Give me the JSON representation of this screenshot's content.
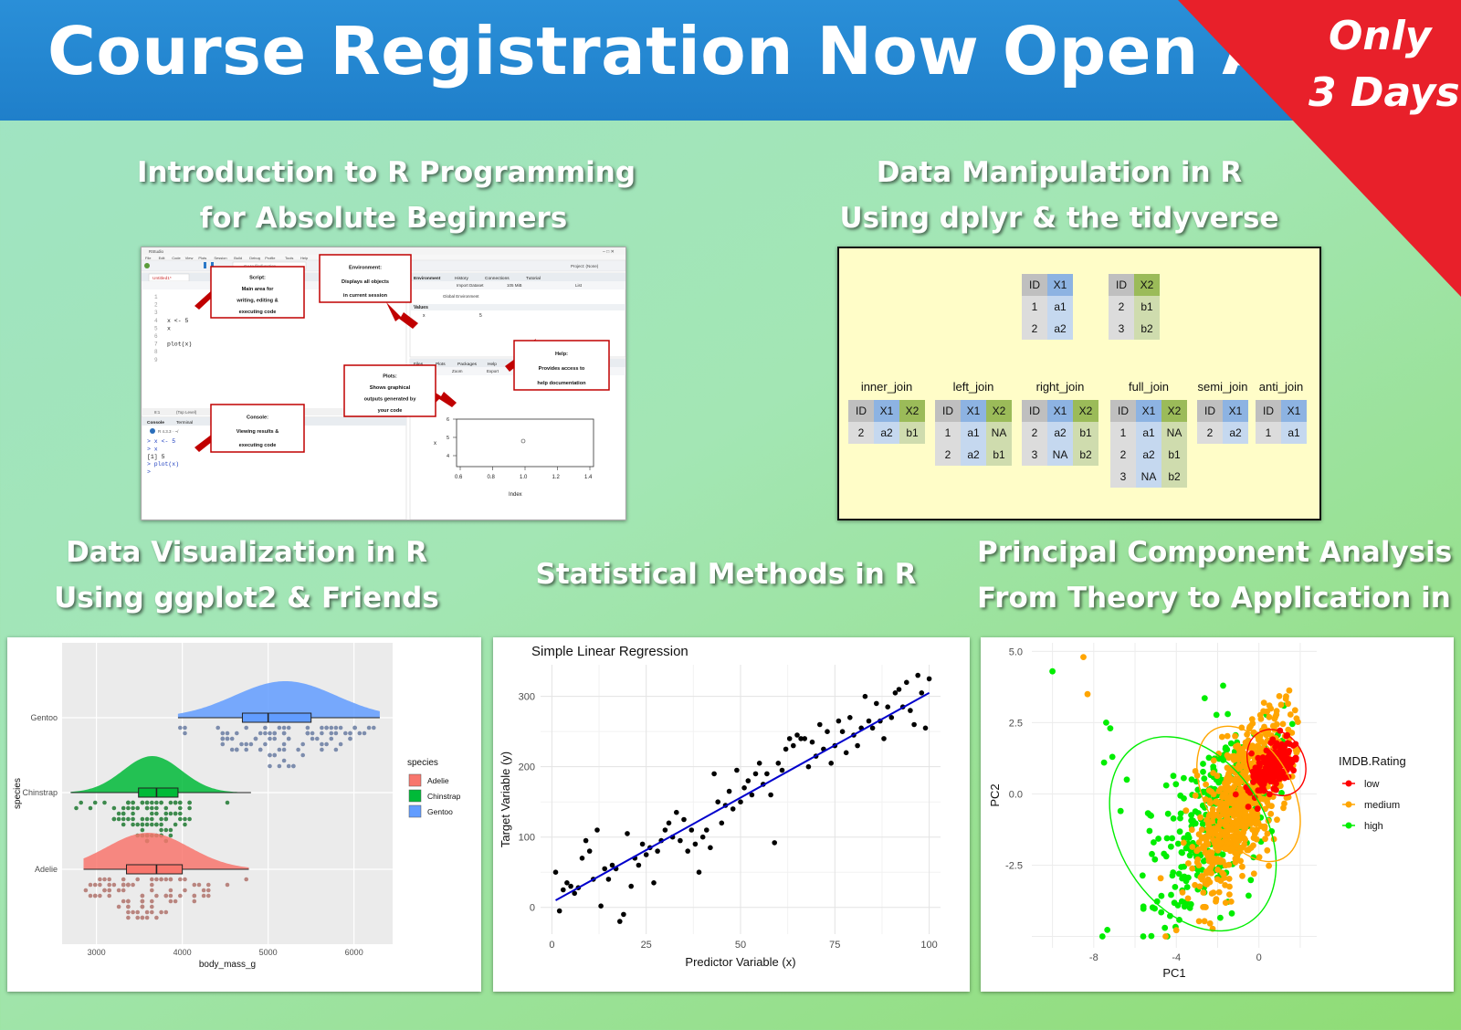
{
  "banner": {
    "title": "Course Registration Now Open Again",
    "corner_line1": "Only",
    "corner_line2": "3 Days",
    "colors": {
      "banner": "#1f7fca",
      "corner": "#e8202a"
    }
  },
  "courses": [
    {
      "title_line1": "Introduction to R Programming",
      "title_line2": "for Absolute Beginners"
    },
    {
      "title_line1": "Data Manipulation in R",
      "title_line2": "Using dplyr & the tidyverse"
    },
    {
      "title_line1": "Data Visualization in R",
      "title_line2": "Using ggplot2 & Friends"
    },
    {
      "title_line1": "Statistical Methods in R"
    },
    {
      "title_line1": "Principal Component Analysis",
      "title_line2": "From Theory to Application in R"
    }
  ],
  "rstudio": {
    "callouts": {
      "script": [
        "Script:",
        "Main area for",
        "writing, editing &",
        "executing code"
      ],
      "environment": [
        "Environment:",
        "Displays all objects",
        "in current session"
      ],
      "help": [
        "Help:",
        "Provides access to",
        "help documentation"
      ],
      "plots": [
        "Plots:",
        "Shows graphical",
        "outputs generated by",
        "your code"
      ],
      "console": [
        "Console:",
        "Viewing results &",
        "executing code"
      ]
    },
    "editor_tab": "Untitled1*",
    "line_numbers": [
      "1",
      "2",
      "3",
      "4",
      "5",
      "6",
      "7",
      "8",
      "9"
    ],
    "code_lines": [
      "",
      "",
      "",
      "x <- 5",
      "x",
      "",
      "plot(x)",
      "",
      ""
    ],
    "env_tabs": [
      "Environment",
      "History",
      "Connections",
      "Tutorial"
    ],
    "env_toolbar": [
      "Import Dataset",
      "105 MiB",
      "List"
    ],
    "global_env": "Global Environment",
    "values_header": "Values",
    "env_var": {
      "name": "x",
      "value": "5"
    },
    "files_tabs": [
      "Files",
      "Plots",
      "Packages",
      "Help"
    ],
    "plot_toolbar": [
      "Zoom",
      "Export"
    ],
    "console_tabs": [
      "Console",
      "Terminal"
    ],
    "status": [
      "8:1",
      "(Top Level)"
    ],
    "r_version": "R 4.3.3 · ~/",
    "console_lines": [
      "> x <- 5",
      "> x",
      "[1] 5",
      "> plot(x)",
      "> "
    ],
    "project": "Project: (None)",
    "goto": "Go to file/function",
    "window_title": "RStudio",
    "menu": [
      "File",
      "Edit",
      "Code",
      "View",
      "Plots",
      "Session",
      "Build",
      "Debug",
      "Profile",
      "Tools",
      "Help"
    ],
    "mini_plot": {
      "x_ticks": [
        "0.6",
        "0.8",
        "1.0",
        "1.2",
        "1.4"
      ],
      "y_ticks": [
        "4",
        "5",
        "6"
      ],
      "ylabel": "x",
      "xlabel": "Index"
    }
  },
  "joins": {
    "x_table": {
      "header": [
        "ID",
        "X1"
      ],
      "rows": [
        [
          "1",
          "a1"
        ],
        [
          "2",
          "a2"
        ]
      ]
    },
    "y_table": {
      "header": [
        "ID",
        "X2"
      ],
      "rows": [
        [
          "2",
          "b1"
        ],
        [
          "3",
          "b2"
        ]
      ]
    },
    "results": [
      {
        "name": "inner_join",
        "header": [
          "ID",
          "X1",
          "X2"
        ],
        "rows": [
          [
            "2",
            "a2",
            "b1"
          ]
        ]
      },
      {
        "name": "left_join",
        "header": [
          "ID",
          "X1",
          "X2"
        ],
        "rows": [
          [
            "1",
            "a1",
            "NA"
          ],
          [
            "2",
            "a2",
            "b1"
          ]
        ]
      },
      {
        "name": "right_join",
        "header": [
          "ID",
          "X1",
          "X2"
        ],
        "rows": [
          [
            "2",
            "a2",
            "b1"
          ],
          [
            "3",
            "NA",
            "b2"
          ]
        ]
      },
      {
        "name": "full_join",
        "header": [
          "ID",
          "X1",
          "X2"
        ],
        "rows": [
          [
            "1",
            "a1",
            "NA"
          ],
          [
            "2",
            "a2",
            "b1"
          ],
          [
            "3",
            "NA",
            "b2"
          ]
        ]
      },
      {
        "name": "semi_join",
        "header": [
          "ID",
          "X1"
        ],
        "rows": [
          [
            "2",
            "a2"
          ]
        ]
      },
      {
        "name": "anti_join",
        "header": [
          "ID",
          "X1"
        ],
        "rows": [
          [
            "1",
            "a1"
          ]
        ]
      }
    ],
    "colors": {
      "id": "#bfbfbf",
      "x": "#8db3e2",
      "y": "#9bbb59",
      "bg": "#fffdc8"
    }
  },
  "chart_data": [
    {
      "type": "raincloud",
      "xlabel": "body_mass_g",
      "ylabel": "species",
      "x_ticks": [
        "3000",
        "4000",
        "5000",
        "6000"
      ],
      "xlim": [
        2600,
        6450
      ],
      "legend_title": "species",
      "legend": [
        "Adelie",
        "Chinstrap",
        "Gentoo"
      ],
      "series": [
        {
          "name": "Gentoo",
          "color": "#619cff",
          "dot": "#7d8dad",
          "min": 3950,
          "q1": 4700,
          "median": 5000,
          "q3": 5500,
          "max": 6300,
          "peak": 5200
        },
        {
          "name": "Chinstrap",
          "color": "#00ba38",
          "dot": "#3d8a4d",
          "min": 2700,
          "q1": 3490,
          "median": 3700,
          "q3": 3950,
          "max": 4800,
          "peak": 3650
        },
        {
          "name": "Adelie",
          "color": "#f8766d",
          "dot": "#b9857f",
          "min": 2850,
          "q1": 3350,
          "median": 3700,
          "q3": 4000,
          "max": 4775,
          "peak": 3600
        }
      ]
    },
    {
      "type": "scatter",
      "title": "Simple Linear Regression",
      "xlabel": "Predictor Variable (x)",
      "ylabel": "Target Variable (y)",
      "xlim": [
        -3,
        103
      ],
      "ylim": [
        -38,
        345
      ],
      "x_ticks": [
        0,
        25,
        50,
        75,
        100
      ],
      "y_ticks": [
        0,
        100,
        200,
        300
      ],
      "fit": {
        "x": [
          1,
          100
        ],
        "y": [
          10,
          305
        ],
        "color": "#0000cc"
      },
      "points": [
        [
          1,
          50
        ],
        [
          2,
          -5
        ],
        [
          3,
          25
        ],
        [
          4,
          35
        ],
        [
          5,
          30
        ],
        [
          6,
          20
        ],
        [
          7,
          28
        ],
        [
          8,
          70
        ],
        [
          9,
          95
        ],
        [
          10,
          80
        ],
        [
          11,
          40
        ],
        [
          12,
          110
        ],
        [
          13,
          2
        ],
        [
          14,
          55
        ],
        [
          15,
          40
        ],
        [
          16,
          60
        ],
        [
          17,
          55
        ],
        [
          18,
          -20
        ],
        [
          19,
          -10
        ],
        [
          20,
          105
        ],
        [
          21,
          30
        ],
        [
          22,
          70
        ],
        [
          23,
          60
        ],
        [
          24,
          90
        ],
        [
          25,
          75
        ],
        [
          26,
          85
        ],
        [
          27,
          35
        ],
        [
          28,
          80
        ],
        [
          29,
          95
        ],
        [
          30,
          110
        ],
        [
          31,
          120
        ],
        [
          32,
          100
        ],
        [
          33,
          135
        ],
        [
          34,
          95
        ],
        [
          35,
          125
        ],
        [
          36,
          80
        ],
        [
          37,
          110
        ],
        [
          38,
          90
        ],
        [
          39,
          50
        ],
        [
          40,
          100
        ],
        [
          41,
          110
        ],
        [
          42,
          85
        ],
        [
          43,
          190
        ],
        [
          44,
          150
        ],
        [
          45,
          120
        ],
        [
          46,
          145
        ],
        [
          47,
          165
        ],
        [
          48,
          140
        ],
        [
          49,
          195
        ],
        [
          50,
          150
        ],
        [
          51,
          170
        ],
        [
          52,
          180
        ],
        [
          53,
          160
        ],
        [
          54,
          190
        ],
        [
          55,
          205
        ],
        [
          56,
          175
        ],
        [
          57,
          190
        ],
        [
          58,
          160
        ],
        [
          59,
          92
        ],
        [
          60,
          205
        ],
        [
          61,
          195
        ],
        [
          62,
          225
        ],
        [
          63,
          240
        ],
        [
          64,
          230
        ],
        [
          65,
          245
        ],
        [
          66,
          240
        ],
        [
          67,
          240
        ],
        [
          68,
          200
        ],
        [
          69,
          235
        ],
        [
          70,
          215
        ],
        [
          71,
          260
        ],
        [
          72,
          225
        ],
        [
          73,
          250
        ],
        [
          74,
          205
        ],
        [
          75,
          230
        ],
        [
          76,
          265
        ],
        [
          77,
          250
        ],
        [
          78,
          220
        ],
        [
          79,
          270
        ],
        [
          80,
          245
        ],
        [
          81,
          230
        ],
        [
          82,
          255
        ],
        [
          83,
          300
        ],
        [
          84,
          265
        ],
        [
          85,
          255
        ],
        [
          86,
          290
        ],
        [
          87,
          265
        ],
        [
          88,
          240
        ],
        [
          89,
          285
        ],
        [
          90,
          270
        ],
        [
          91,
          305
        ],
        [
          92,
          310
        ],
        [
          93,
          285
        ],
        [
          94,
          320
        ],
        [
          95,
          280
        ],
        [
          96,
          260
        ],
        [
          97,
          330
        ],
        [
          98,
          305
        ],
        [
          99,
          255
        ],
        [
          100,
          325
        ]
      ]
    },
    {
      "type": "scatter",
      "xlabel": "PC1",
      "ylabel": "PC2",
      "xlim": [
        -11,
        2.8
      ],
      "ylim": [
        -5.4,
        5.3
      ],
      "x_ticks": [
        -8,
        -4,
        0
      ],
      "y_ticks": [
        "5.0",
        "2.5",
        "0.0",
        "-2.5"
      ],
      "legend_title": "IMDB.Rating",
      "series": [
        {
          "name": "low",
          "color": "#ff0000",
          "center": [
            0.7,
            1.0
          ],
          "spread": [
            0.55,
            0.45
          ],
          "count": 180
        },
        {
          "name": "medium",
          "color": "#ffa500",
          "center": [
            -0.9,
            -0.3
          ],
          "spread": [
            1.1,
            1.4
          ],
          "count": 650
        },
        {
          "name": "high",
          "color": "#00ee00",
          "center": [
            -2.3,
            -1.0
          ],
          "spread": [
            1.5,
            1.6
          ],
          "count": 320
        }
      ],
      "outliers": [
        [
          -10.0,
          4.3
        ],
        [
          -8.5,
          4.8
        ],
        [
          -8.3,
          3.5
        ],
        [
          -7.4,
          2.5
        ],
        [
          -7.2,
          2.3
        ],
        [
          -7.1,
          1.3
        ],
        [
          -7.5,
          1.1
        ],
        [
          -6.4,
          0.5
        ],
        [
          -6.7,
          -0.6
        ],
        [
          -5.3,
          -1.3
        ],
        [
          -5.1,
          -1.7
        ],
        [
          -4.6,
          -2.1
        ]
      ]
    }
  ]
}
